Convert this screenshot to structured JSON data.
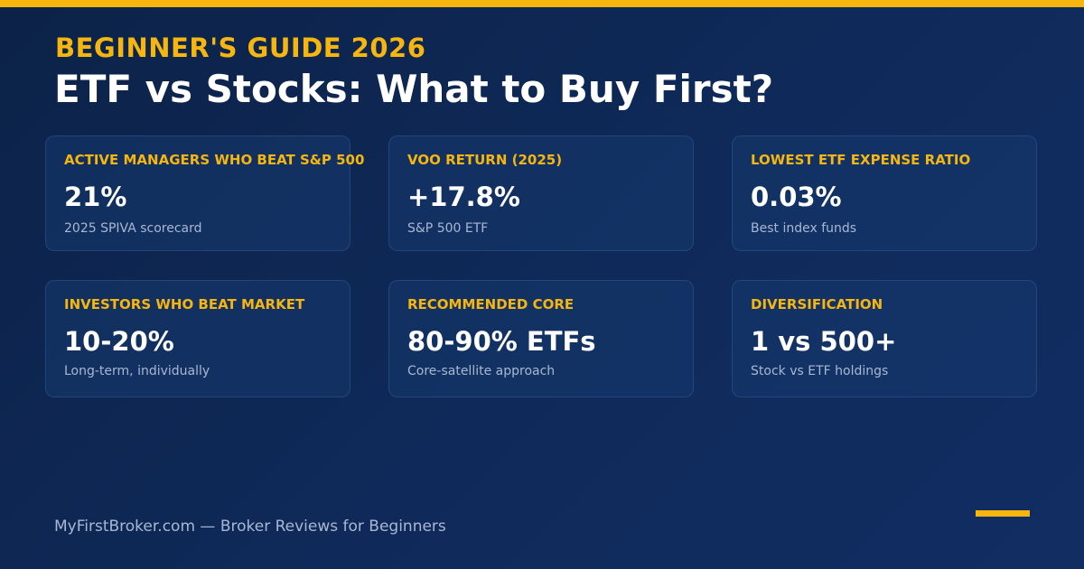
{
  "header": {
    "eyebrow": "BEGINNER'S GUIDE 2026",
    "title": "ETF vs Stocks: What to Buy First?"
  },
  "stats": [
    {
      "label": "ACTIVE MANAGERS WHO BEAT S&P 500",
      "value": "21%",
      "note": "2025 SPIVA scorecard"
    },
    {
      "label": "VOO RETURN (2025)",
      "value": "+17.8%",
      "note": "S&P 500 ETF"
    },
    {
      "label": "LOWEST ETF EXPENSE RATIO",
      "value": "0.03%",
      "note": "Best index funds"
    },
    {
      "label": "INVESTORS WHO BEAT MARKET",
      "value": "10-20%",
      "note": "Long-term, individually"
    },
    {
      "label": "RECOMMENDED CORE",
      "value": "80-90% ETFs",
      "note": "Core-satellite approach"
    },
    {
      "label": "DIVERSIFICATION",
      "value": "1 vs 500+",
      "note": "Stock vs ETF holdings"
    }
  ],
  "footer": {
    "text": "MyFirstBroker.com — Broker Reviews for Beginners"
  },
  "colors": {
    "accent": "#f6b60f",
    "background": "#0f2a5a",
    "card": "#16386e",
    "muted_text": "#a9b8d2"
  }
}
